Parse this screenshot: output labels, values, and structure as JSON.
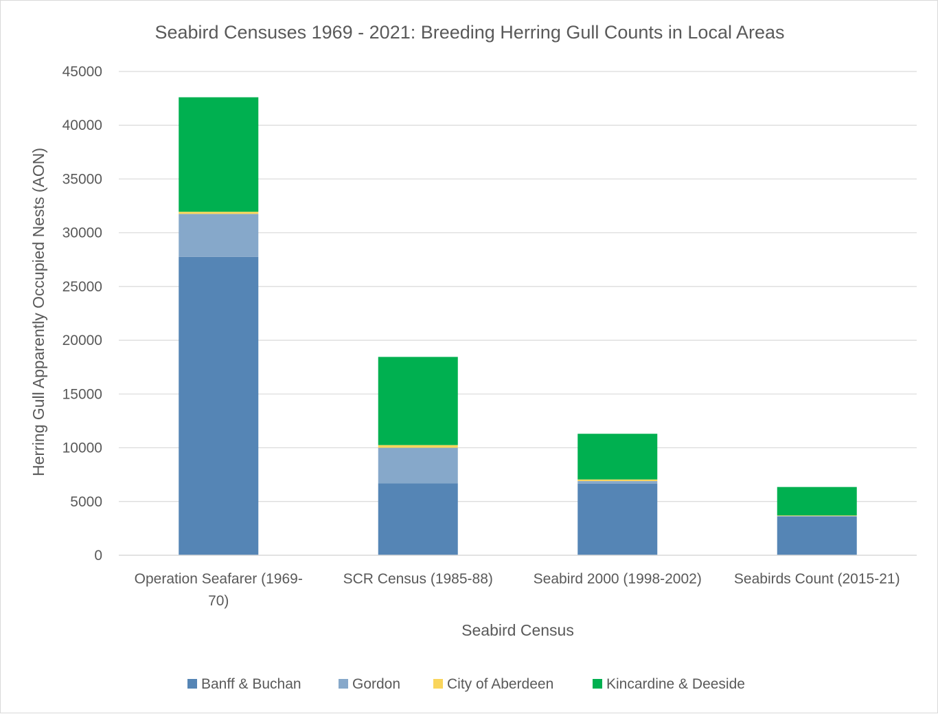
{
  "chart_data": {
    "type": "bar",
    "stacked": true,
    "title": "Seabird Censuses 1969 - 2021: Breeding Herring Gull Counts in Local Areas",
    "xlabel": "Seabird Census",
    "ylabel": "Herring Gull Apparently Occupied Nests (AON)",
    "ylim": [
      0,
      45000
    ],
    "yticks": [
      0,
      5000,
      10000,
      15000,
      20000,
      25000,
      30000,
      35000,
      40000,
      45000
    ],
    "grid": true,
    "legend_position": "bottom",
    "categories": [
      [
        "Operation Seafarer (1969-",
        "70)"
      ],
      [
        "SCR Census (1985-88)"
      ],
      [
        "Seabird 2000 (1998-2002)"
      ],
      [
        "Seabirds Count (2015-21)"
      ]
    ],
    "series": [
      {
        "name": "Banff & Buchan",
        "color": "#5585b5",
        "values": [
          27750,
          6700,
          6650,
          3600
        ]
      },
      {
        "name": "Gordon",
        "color": "#86a8ca",
        "values": [
          4000,
          3300,
          250,
          50
        ]
      },
      {
        "name": "City of Aberdeen",
        "color": "#f9d55c",
        "values": [
          200,
          250,
          150,
          50
        ]
      },
      {
        "name": "Kincardine & Deeside",
        "color": "#00b050",
        "values": [
          10650,
          8200,
          4250,
          2650
        ]
      }
    ]
  }
}
